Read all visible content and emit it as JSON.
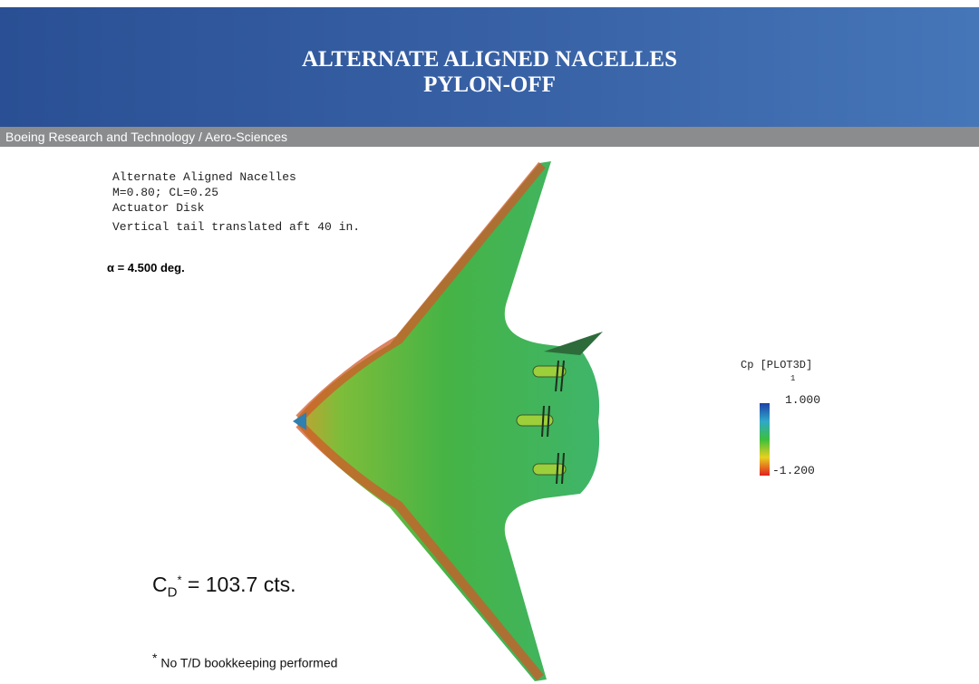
{
  "header": {
    "title_lines": [
      "ALTERNATE ALIGNED NACELLES",
      "PYLON-OFF"
    ],
    "subtitle": "Boeing Research and Technology / Aero-Sciences"
  },
  "annotation": {
    "lines": [
      "Alternate Aligned Nacelles",
      "M=0.80; CL=0.25",
      "Actuator Disk",
      "Vertical tail translated aft  40 in."
    ],
    "alpha": "α = 4.500 deg."
  },
  "legend": {
    "title": "Cp [PLOT3D]",
    "index": "1",
    "max": "1.000",
    "min": "-1.200"
  },
  "drag": {
    "symbol": "C",
    "subscript": "D",
    "superscript": "*",
    "text": "= 103.7 cts."
  },
  "footnote": {
    "mark": "*",
    "text": "No T/D bookkeeping performed"
  }
}
